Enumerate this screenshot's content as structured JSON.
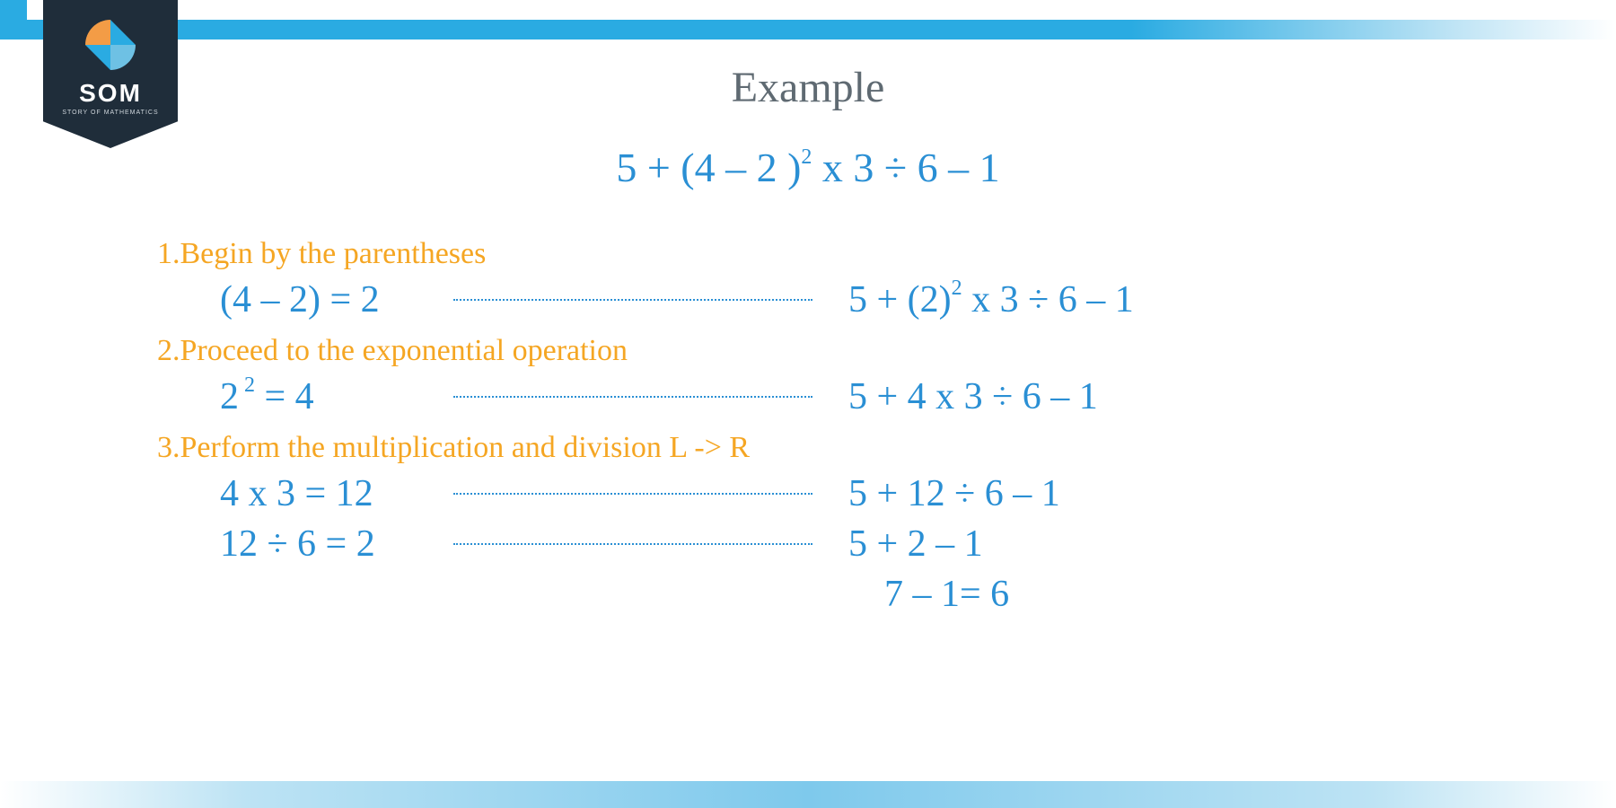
{
  "logo": {
    "text": "SOM",
    "subtitle": "STORY OF MATHEMATICS"
  },
  "title": "Example",
  "mainExpression": {
    "pre": "5 + (4 – 2 )",
    "exp": "2",
    "post": " x 3 ÷ 6 – 1"
  },
  "steps": [
    {
      "label": "1.Begin by the parentheses",
      "rows": [
        {
          "left": "(4 – 2) = 2",
          "rightPre": "5 + (2)",
          "rightExp": "2",
          "rightPost": " x 3 ÷ 6 – 1"
        }
      ]
    },
    {
      "label": "2.Proceed to the exponential operation",
      "rows": [
        {
          "leftPre": "2",
          "leftExp": " 2",
          "leftPost": " = 4",
          "right": "5 + 4 x 3 ÷ 6 – 1"
        }
      ]
    },
    {
      "label": "3.Perform the multiplication and division L -> R",
      "rows": [
        {
          "left": "4 x 3 = 12",
          "right": "5 + 12 ÷ 6 – 1"
        },
        {
          "left": "12 ÷ 6 = 2",
          "right": "5 + 2 – 1"
        }
      ]
    }
  ],
  "finalRows": [
    "7 – 1= 6"
  ],
  "colors": {
    "accent": "#2aabe2",
    "mathBlue": "#2a8fd4",
    "stepOrange": "#f5a623",
    "titleGray": "#5f6a72",
    "badge": "#1f2d3a"
  }
}
